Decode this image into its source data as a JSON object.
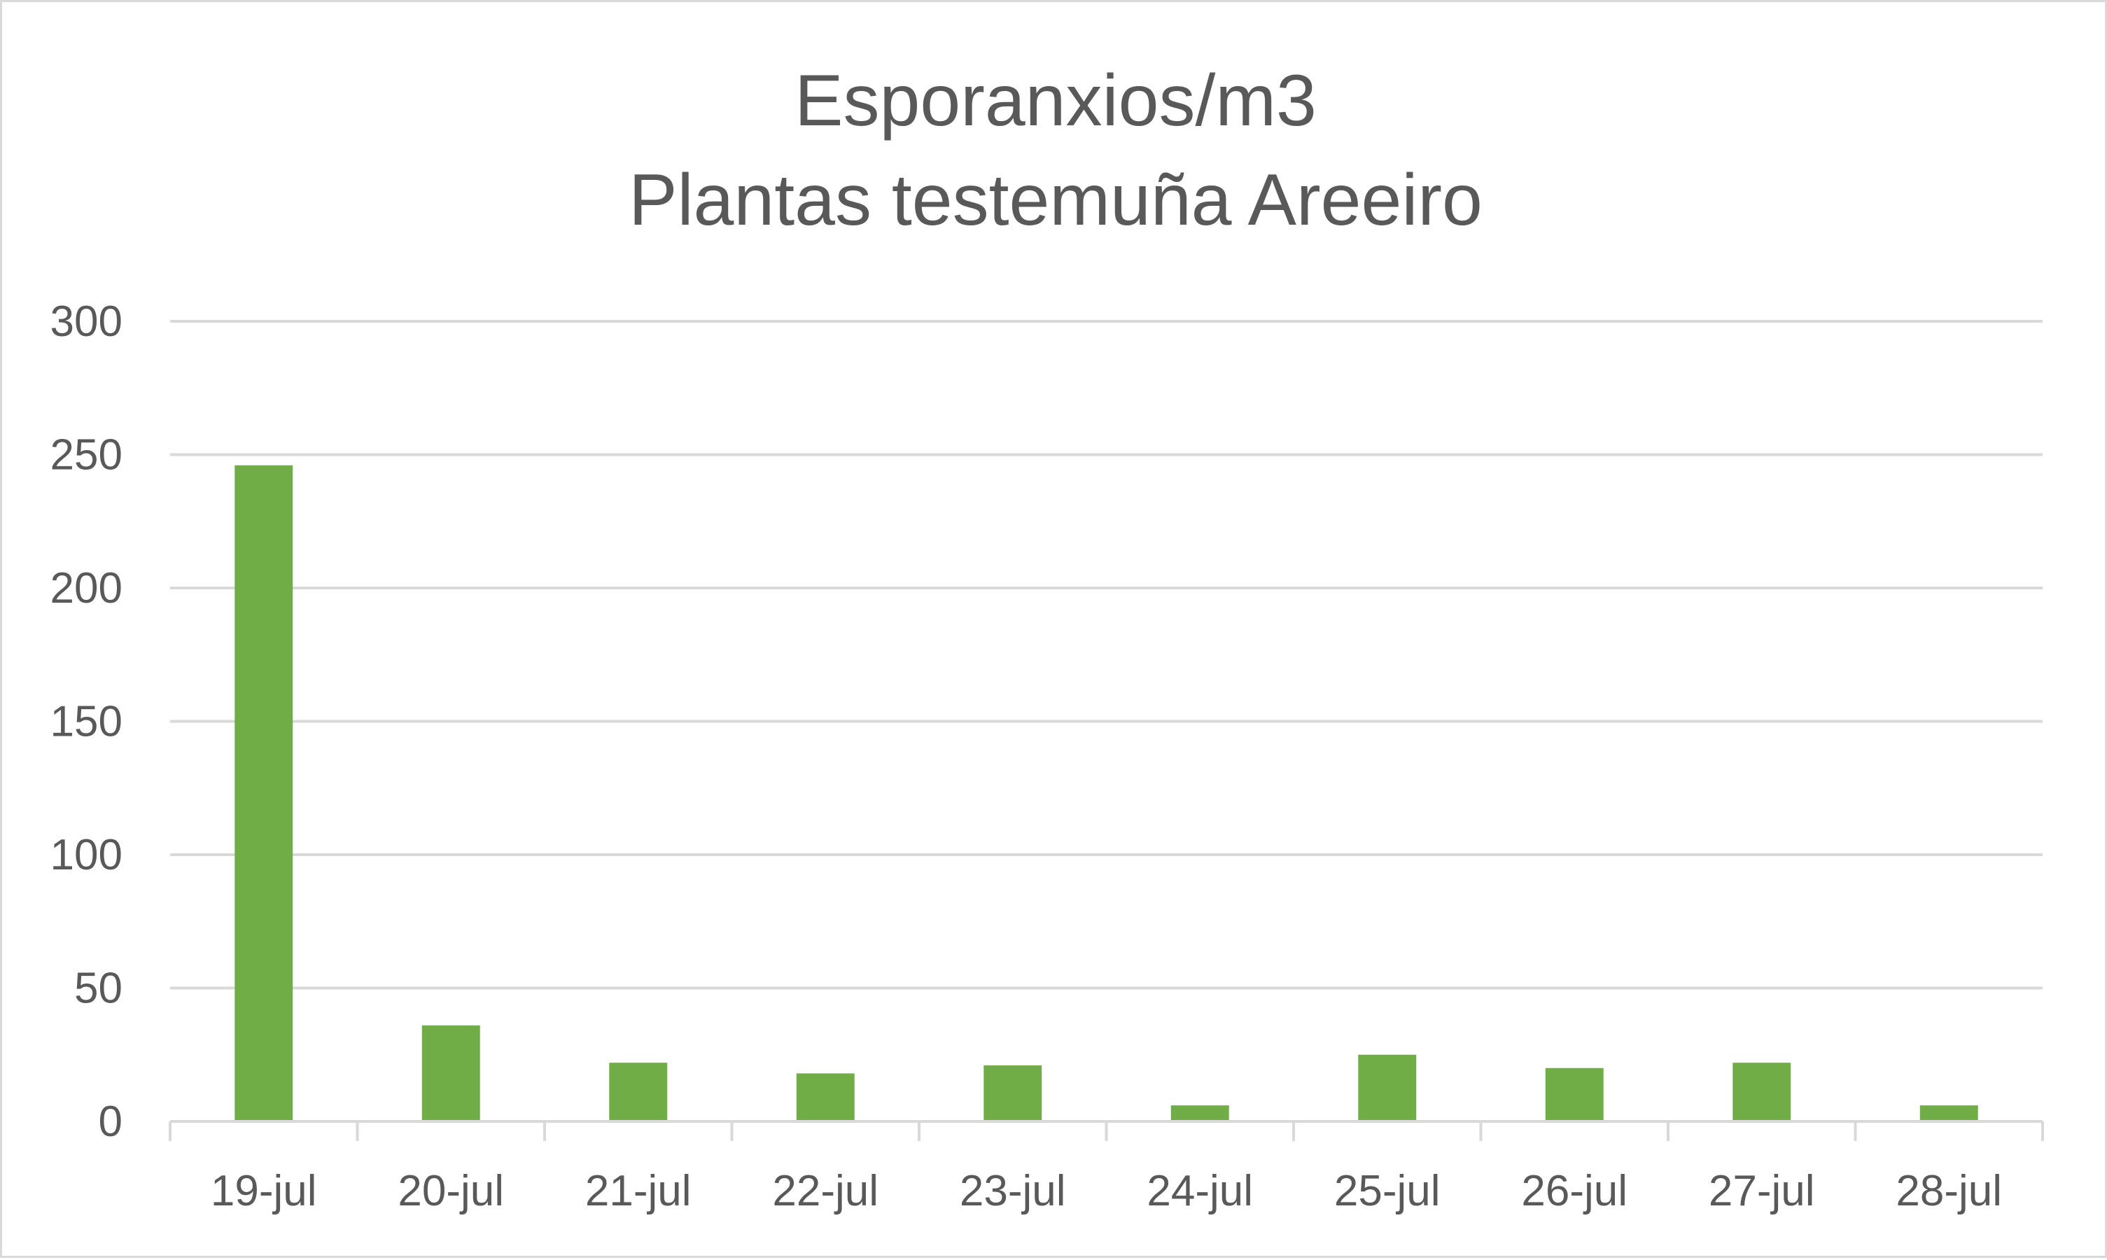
{
  "chart_data": {
    "type": "bar",
    "title": "Esporanxios/m3",
    "subtitle": "Plantas testemuña Areeiro",
    "xlabel": "",
    "ylabel": "",
    "categories": [
      "19-jul",
      "20-jul",
      "21-jul",
      "22-jul",
      "23-jul",
      "24-jul",
      "25-jul",
      "26-jul",
      "27-jul",
      "28-jul"
    ],
    "values": [
      246,
      36,
      22,
      18,
      21,
      6,
      25,
      20,
      22,
      6
    ],
    "ylim": [
      0,
      300
    ],
    "yticks": [
      0,
      50,
      100,
      150,
      200,
      250,
      300
    ],
    "grid": true,
    "legend": "none",
    "bar_color": "#70ad47",
    "gridline_color": "#d9d9d9",
    "text_color": "#595959"
  }
}
